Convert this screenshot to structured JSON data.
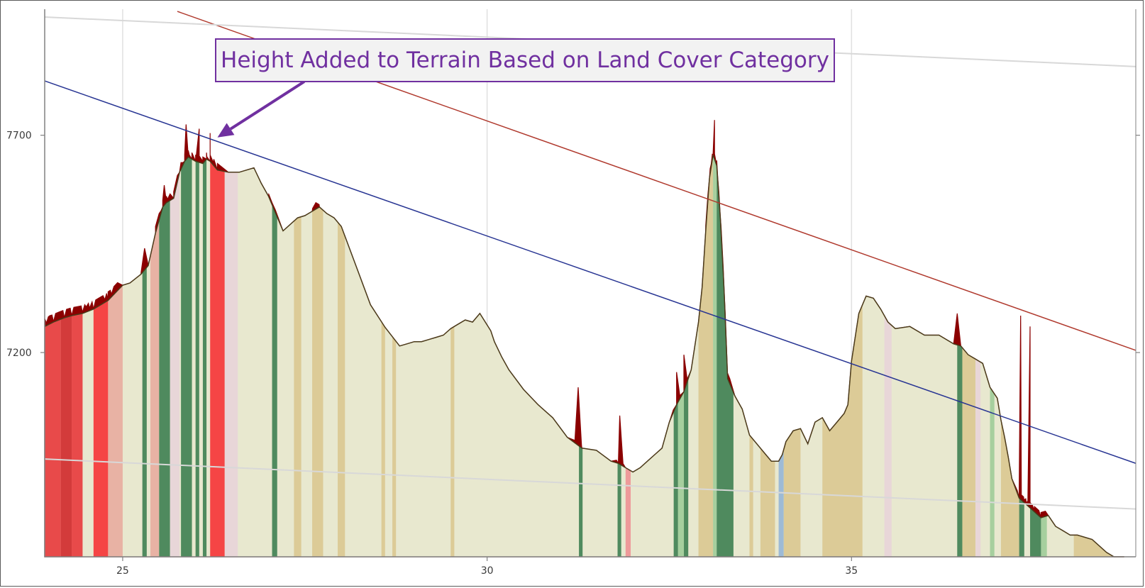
{
  "chart_data": {
    "type": "area",
    "title": "",
    "xlabel": "",
    "ylabel": "",
    "xlim": [
      23.93,
      38.9
    ],
    "ylim": [
      6730,
      7990
    ],
    "x_ticks": [
      25,
      30,
      35
    ],
    "x_tick_labels": [
      "25",
      "30",
      "35"
    ],
    "y_ticks": [
      7200,
      7700
    ],
    "y_tick_labels": [
      "7200",
      "7700"
    ],
    "grid": "vertical",
    "annotations": [
      {
        "text": "Height Added to Terrain Based on Land Cover Category",
        "arrow_to": [
          26.3,
          7695
        ],
        "color": "#7030a0"
      }
    ],
    "terrain": {
      "x": [
        23.93,
        24.05,
        24.2,
        24.3,
        24.45,
        24.6,
        24.8,
        25.0,
        25.1,
        25.25,
        25.35,
        25.45,
        25.55,
        25.6,
        25.7,
        25.78,
        25.85,
        25.9,
        25.95,
        26.0,
        26.1,
        26.15,
        26.2,
        26.3,
        26.45,
        26.6,
        26.8,
        26.9,
        27.0,
        27.2,
        27.4,
        27.5,
        27.6,
        27.7,
        27.8,
        27.9,
        28.0,
        28.2,
        28.4,
        28.6,
        28.8,
        28.9,
        29.0,
        29.1,
        29.2,
        29.3,
        29.4,
        29.5,
        29.6,
        29.7,
        29.8,
        29.9,
        30.05,
        30.1,
        30.2,
        30.3,
        30.5,
        30.7,
        30.9,
        31.1,
        31.3,
        31.5,
        31.7,
        31.8,
        31.9,
        32.0,
        32.1,
        32.2,
        32.3,
        32.4,
        32.5,
        32.6,
        32.7,
        32.8,
        32.9,
        32.95,
        33.0,
        33.05,
        33.1,
        33.15,
        33.2,
        33.25,
        33.3,
        33.4,
        33.5,
        33.6,
        33.8,
        33.9,
        34.0,
        34.05,
        34.1,
        34.2,
        34.3,
        34.4,
        34.5,
        34.6,
        34.7,
        34.8,
        34.9,
        34.95,
        35.0,
        35.1,
        35.2,
        35.3,
        35.4,
        35.5,
        35.6,
        35.8,
        36.0,
        36.2,
        36.4,
        36.5,
        36.6,
        36.7,
        36.8,
        36.9,
        37.0,
        37.05,
        37.1,
        37.15,
        37.2,
        37.3,
        37.4,
        37.5,
        37.6,
        37.7,
        37.8,
        37.9,
        38.0,
        38.1,
        38.3,
        38.5,
        38.6,
        38.7,
        38.74
      ],
      "y": [
        7260,
        7270,
        7280,
        7285,
        7290,
        7300,
        7320,
        7355,
        7360,
        7380,
        7400,
        7475,
        7535,
        7545,
        7555,
        7615,
        7640,
        7650,
        7645,
        7640,
        7635,
        7645,
        7640,
        7620,
        7615,
        7615,
        7625,
        7590,
        7560,
        7480,
        7510,
        7515,
        7525,
        7535,
        7520,
        7510,
        7490,
        7400,
        7310,
        7258,
        7215,
        7220,
        7225,
        7225,
        7230,
        7235,
        7240,
        7255,
        7265,
        7275,
        7270,
        7290,
        7250,
        7225,
        7190,
        7160,
        7115,
        7080,
        7050,
        7005,
        6980,
        6975,
        6950,
        6945,
        6935,
        6925,
        6935,
        6950,
        6965,
        6980,
        7040,
        7080,
        7110,
        7160,
        7270,
        7350,
        7480,
        7600,
        7655,
        7630,
        7510,
        7350,
        7140,
        7100,
        7070,
        7010,
        6970,
        6950,
        6950,
        6965,
        6995,
        7020,
        7025,
        6990,
        7040,
        7050,
        7020,
        7040,
        7060,
        7080,
        7180,
        7290,
        7330,
        7325,
        7300,
        7270,
        7255,
        7260,
        7240,
        7240,
        7220,
        7215,
        7195,
        7185,
        7175,
        7120,
        7095,
        7045,
        7005,
        6960,
        6910,
        6865,
        6850,
        6835,
        6820,
        6825,
        6800,
        6790,
        6780,
        6780,
        6770,
        6740,
        6730,
        6730,
        6730
      ],
      "added_height_peaks": [
        [
          24.0,
          7285
        ],
        [
          24.5,
          7305
        ],
        [
          24.8,
          7340
        ],
        [
          25.3,
          7440
        ],
        [
          25.57,
          7585
        ],
        [
          25.87,
          7725
        ],
        [
          26.05,
          7715
        ],
        [
          26.2,
          7705
        ],
        [
          27.05,
          7545
        ],
        [
          27.65,
          7545
        ],
        [
          31.25,
          7120
        ],
        [
          31.82,
          7055
        ],
        [
          32.6,
          7155
        ],
        [
          32.7,
          7195
        ],
        [
          33.12,
          7735
        ],
        [
          36.45,
          7290
        ],
        [
          37.32,
          7285
        ],
        [
          37.45,
          7260
        ]
      ]
    },
    "land_cover_bands": [
      {
        "x": [
          23.93,
          24.15
        ],
        "color": "#e84a4a"
      },
      {
        "x": [
          24.15,
          24.3
        ],
        "color": "#d33b3b"
      },
      {
        "x": [
          24.3,
          24.45
        ],
        "color": "#e84a4a"
      },
      {
        "x": [
          24.6,
          24.8
        ],
        "color": "#f54545"
      },
      {
        "x": [
          24.8,
          25.0
        ],
        "color": "#e8b2a4"
      },
      {
        "x": [
          25.27,
          25.33
        ],
        "color": "#4f8a5e"
      },
      {
        "x": [
          25.38,
          25.5
        ],
        "color": "#e8b2a4"
      },
      {
        "x": [
          25.5,
          25.65
        ],
        "color": "#4f8a5e"
      },
      {
        "x": [
          25.65,
          25.78
        ],
        "color": "#e8d6d8"
      },
      {
        "x": [
          25.8,
          25.95
        ],
        "color": "#4f8a5e"
      },
      {
        "x": [
          26.0,
          26.05
        ],
        "color": "#4f8a5e"
      },
      {
        "x": [
          26.1,
          26.15
        ],
        "color": "#4f8a5e"
      },
      {
        "x": [
          26.2,
          26.4
        ],
        "color": "#f54545"
      },
      {
        "x": [
          26.4,
          26.58
        ],
        "color": "#e8d6d8"
      },
      {
        "x": [
          27.05,
          27.12
        ],
        "color": "#4f8a5e"
      },
      {
        "x": [
          27.35,
          27.45
        ],
        "color": "#dccb97"
      },
      {
        "x": [
          27.6,
          27.75
        ],
        "color": "#dccb97"
      },
      {
        "x": [
          27.95,
          28.05
        ],
        "color": "#dccb97"
      },
      {
        "x": [
          28.55,
          28.6
        ],
        "color": "#dccb97"
      },
      {
        "x": [
          28.7,
          28.75
        ],
        "color": "#dccb97"
      },
      {
        "x": [
          29.5,
          29.55
        ],
        "color": "#dccb97"
      },
      {
        "x": [
          31.26,
          31.31
        ],
        "color": "#4f8a5e"
      },
      {
        "x": [
          31.79,
          31.84
        ],
        "color": "#4f8a5e"
      },
      {
        "x": [
          31.9,
          31.97
        ],
        "color": "#ee9a9a"
      },
      {
        "x": [
          32.56,
          32.62
        ],
        "color": "#4f8a5e"
      },
      {
        "x": [
          32.62,
          32.7
        ],
        "color": "#a6cf9e"
      },
      {
        "x": [
          32.7,
          32.76
        ],
        "color": "#4f8a5e"
      },
      {
        "x": [
          32.9,
          33.1
        ],
        "color": "#dccb97"
      },
      {
        "x": [
          33.1,
          33.15
        ],
        "color": "#a6cf9e"
      },
      {
        "x": [
          33.15,
          33.38
        ],
        "color": "#4f8a5e"
      },
      {
        "x": [
          33.6,
          33.65
        ],
        "color": "#dccb97"
      },
      {
        "x": [
          33.75,
          33.95
        ],
        "color": "#dccb97"
      },
      {
        "x": [
          34.0,
          34.07
        ],
        "color": "#9dbad6"
      },
      {
        "x": [
          34.07,
          34.3
        ],
        "color": "#dccb97"
      },
      {
        "x": [
          34.6,
          35.15
        ],
        "color": "#dccb97"
      },
      {
        "x": [
          35.45,
          35.55
        ],
        "color": "#e8d6d8"
      },
      {
        "x": [
          36.45,
          36.52
        ],
        "color": "#4f8a5e"
      },
      {
        "x": [
          36.52,
          36.7
        ],
        "color": "#dccb97"
      },
      {
        "x": [
          36.7,
          36.77
        ],
        "color": "#e8d6d8"
      },
      {
        "x": [
          36.9,
          36.96
        ],
        "color": "#a6cf9e"
      },
      {
        "x": [
          37.05,
          37.3
        ],
        "color": "#dccb97"
      },
      {
        "x": [
          37.3,
          37.37
        ],
        "color": "#4f8a5e"
      },
      {
        "x": [
          37.45,
          37.6
        ],
        "color": "#4f8a5e"
      },
      {
        "x": [
          37.6,
          37.68
        ],
        "color": "#a6cf9e"
      },
      {
        "x": [
          38.05,
          38.74
        ],
        "color": "#dccb97"
      }
    ],
    "sight_lines": [
      {
        "color": "#283593",
        "x": [
          23.93,
          38.9
        ],
        "y": [
          7825,
          6945
        ]
      },
      {
        "color": "#b03a2e",
        "x": [
          25.75,
          38.9
        ],
        "y": [
          7985,
          7205
        ]
      },
      {
        "color": "#d8d8d8",
        "x": [
          23.93,
          38.9
        ],
        "y": [
          7972,
          7858
        ]
      },
      {
        "color": "#d8d8d8",
        "x": [
          23.93,
          38.9
        ],
        "y": [
          6955,
          6840
        ]
      }
    ],
    "colors": {
      "terrain_fill": "#e8e8cf",
      "terrain_outline": "#4a3a1a",
      "added_height": "#8b0000",
      "annotation": "#7030a0",
      "grid": "#e0e0e0",
      "axis": "#808080"
    }
  }
}
